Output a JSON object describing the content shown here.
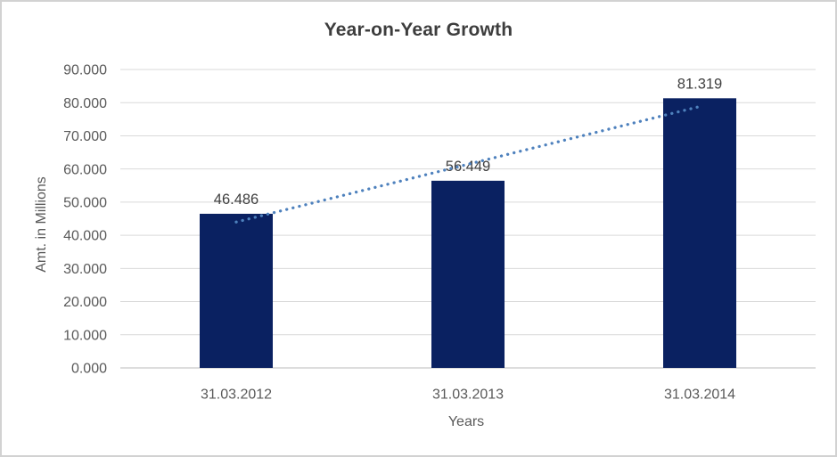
{
  "window": {
    "background": "#ffffff",
    "border_color": "#d2d2d2"
  },
  "chart_data": {
    "type": "bar",
    "title": "Year-on-Year Growth",
    "categories": [
      "31.03.2012",
      "31.03.2013",
      "31.03.2014"
    ],
    "values": [
      46.486,
      56.449,
      81.319
    ],
    "data_labels": [
      "46.486",
      "56.449",
      "81.319"
    ],
    "xlabel": "Years",
    "ylabel": "Amt. in Millions",
    "ylim": [
      0,
      90
    ],
    "ytick_step": 10,
    "ytick_labels": [
      "0.000",
      "10.000",
      "20.000",
      "30.000",
      "40.000",
      "50.000",
      "60.000",
      "70.000",
      "80.000",
      "90.000"
    ],
    "grid": true,
    "legend": "none",
    "trendline": {
      "type": "linear",
      "style": "dotted"
    },
    "colors": {
      "bar": "#0a2161",
      "trendline": "#4e81bd",
      "gridline": "#d9d9d9",
      "axis_line": "#d2d2d2",
      "title_text": "#3d3d3d",
      "axis_text": "#595959",
      "data_label_text": "#404040"
    }
  }
}
